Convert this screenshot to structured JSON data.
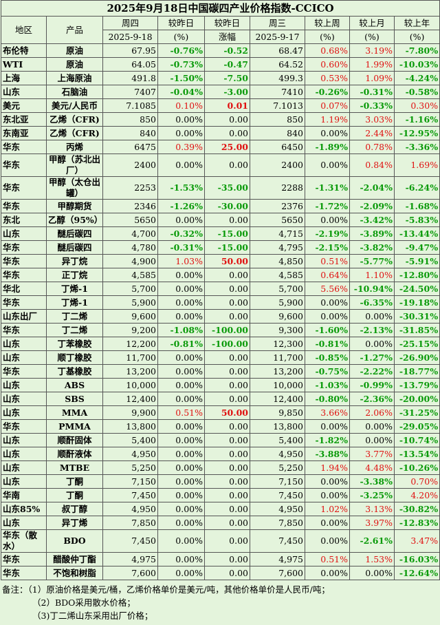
{
  "title": "2025年9月18日中国碳四产业价格指数-CCICO",
  "header": {
    "region": "地区",
    "product": "产品",
    "cols": [
      [
        "周四",
        "2025-9-18"
      ],
      [
        "较昨日",
        "(%)"
      ],
      [
        "较昨日",
        "涨幅"
      ],
      [
        "周三",
        "2025-9-17"
      ],
      [
        "较上周",
        "(%)"
      ],
      [
        "较上月",
        "(%)"
      ],
      [
        "较上年",
        "(%)"
      ]
    ]
  },
  "table": {
    "rows": [
      [
        "布伦特",
        "原油",
        "67.95",
        "-0.76%",
        "-0.52",
        "68.47",
        "0.68%",
        "3.19%",
        "-7.80%"
      ],
      [
        "WTI",
        "原油",
        "64.05",
        "-0.73%",
        "-0.47",
        "64.52",
        "0.60%",
        "1.99%",
        "-10.03%"
      ],
      [
        "上海",
        "上海原油",
        "491.8",
        "-1.50%",
        "-7.50",
        "499.3",
        "0.53%",
        "1.09%",
        "-4.24%"
      ],
      [
        "山东",
        "石脑油",
        "7407",
        "-0.04%",
        "-3.00",
        "7410",
        "-0.26%",
        "-0.31%",
        "-0.58%"
      ],
      [
        "美元",
        "美元/人民币",
        "7.1085",
        "0.10%",
        "0.01",
        "7.1013",
        "0.07%",
        "-0.33%",
        "0.30%"
      ],
      [
        "东北亚",
        "乙烯（CFR)",
        "850",
        "0.00%",
        "0.00",
        "850",
        "1.19%",
        "3.03%",
        "-1.16%"
      ],
      [
        "东南亚",
        "乙烯（CFR)",
        "840",
        "0.00%",
        "0.00",
        "840",
        "0.00%",
        "2.44%",
        "-12.95%"
      ],
      [
        "华东",
        "丙烯",
        "6475",
        "0.39%",
        "25.00",
        "6450",
        "-1.89%",
        "0.78%",
        "-3.36%"
      ],
      [
        "华东",
        "甲醇（苏北出厂）",
        "2400",
        "0.00%",
        "0.00",
        "2400",
        "0.00%",
        "0.84%",
        "1.69%"
      ],
      [
        "华东",
        "甲醇（太仓出罐）",
        "2253",
        "-1.53%",
        "-35.00",
        "2288",
        "-1.31%",
        "-2.04%",
        "-6.24%"
      ],
      [
        "华东",
        "甲醇期货",
        "2346",
        "-1.26%",
        "-30.00",
        "2376",
        "-1.72%",
        "-2.09%",
        "-1.68%"
      ],
      [
        "东北",
        "乙醇（95%）",
        "5650",
        "0.00%",
        "0.00",
        "5650",
        "0.00%",
        "-3.42%",
        "-5.83%"
      ],
      [
        "山东",
        "醚后碳四",
        "4,700",
        "-0.32%",
        "-15.00",
        "4,715",
        "-2.19%",
        "-3.89%",
        "-13.44%"
      ],
      [
        "华东",
        "醚后碳四",
        "4,780",
        "-0.31%",
        "-15.00",
        "4,795",
        "-2.15%",
        "-3.82%",
        "-9.47%"
      ],
      [
        "华东",
        "异丁烷",
        "4,900",
        "1.03%",
        "50.00",
        "4,850",
        "0.51%",
        "-5.77%",
        "-5.91%"
      ],
      [
        "华东",
        "正丁烷",
        "4,585",
        "0.00%",
        "0.00",
        "4,585",
        "0.64%",
        "1.10%",
        "-12.80%"
      ],
      [
        "华北",
        "丁烯-1",
        "5,700",
        "0.00%",
        "0.00",
        "5,700",
        "5.56%",
        "-10.94%",
        "-24.50%"
      ],
      [
        "华东",
        "丁烯-1",
        "5,900",
        "0.00%",
        "0.00",
        "5,900",
        "0.00%",
        "-6.35%",
        "-19.18%"
      ],
      [
        "山东出厂",
        "丁二烯",
        "9,600",
        "0.00%",
        "0.00",
        "9,600",
        "0.00%",
        "0.00%",
        "-30.31%"
      ],
      [
        "华东",
        "丁二烯",
        "9,200",
        "-1.08%",
        "-100.00",
        "9,300",
        "-1.60%",
        "-2.13%",
        "-31.85%"
      ],
      [
        "山东",
        "丁苯橡胶",
        "12,200",
        "-0.81%",
        "-100.00",
        "12,300",
        "-0.81%",
        "0.00%",
        "-25.15%"
      ],
      [
        "山东",
        "顺丁橡胶",
        "11,700",
        "0.00%",
        "0.00",
        "11,700",
        "-0.85%",
        "-1.27%",
        "-26.90%"
      ],
      [
        "华东",
        "丁基橡胶",
        "13,200",
        "0.00%",
        "0.00",
        "13,200",
        "-0.75%",
        "-2.22%",
        "-18.77%"
      ],
      [
        "山东",
        "ABS",
        "10,000",
        "0.00%",
        "0.00",
        "10,000",
        "-1.03%",
        "-0.99%",
        "-13.79%"
      ],
      [
        "山东",
        "SBS",
        "12,400",
        "0.00%",
        "0.00",
        "12,400",
        "-0.80%",
        "-2.36%",
        "-20.00%"
      ],
      [
        "山东",
        "MMA",
        "9,900",
        "0.51%",
        "50.00",
        "9,850",
        "3.66%",
        "2.06%",
        "-31.25%"
      ],
      [
        "华东",
        "PMMA",
        "13,800",
        "0.00%",
        "0.00",
        "13,800",
        "0.00%",
        "0.00%",
        "-29.05%"
      ],
      [
        "山东",
        "顺酐固体",
        "5,400",
        "0.00%",
        "0.00",
        "5,400",
        "-1.82%",
        "0.00%",
        "-10.74%"
      ],
      [
        "山东",
        "顺酐液体",
        "4,950",
        "0.00%",
        "0.00",
        "4,950",
        "-3.88%",
        "3.77%",
        "-13.54%"
      ],
      [
        "山东",
        "MTBE",
        "5,250",
        "0.00%",
        "0.00",
        "5,250",
        "1.94%",
        "4.48%",
        "-10.26%"
      ],
      [
        "山东",
        "丁酮",
        "7,150",
        "0.00%",
        "0.00",
        "7,150",
        "0.00%",
        "-3.38%",
        "0.70%"
      ],
      [
        "华南",
        "丁酮",
        "7,450",
        "0.00%",
        "0.00",
        "7,450",
        "0.00%",
        "-3.25%",
        "4.20%"
      ],
      [
        "山东85%",
        "叔丁醇",
        "4,950",
        "0.00%",
        "0.00",
        "4,950",
        "1.02%",
        "3.13%",
        "-30.82%"
      ],
      [
        "山东",
        "异丁烯",
        "7,850",
        "0.00%",
        "0.00",
        "7,850",
        "0.00%",
        "3.97%",
        "-12.83%"
      ],
      [
        "华东（散水）",
        "BDO",
        "7,450",
        "0.00%",
        "0.00",
        "7,450",
        "0.00%",
        "-2.61%",
        "3.47%"
      ],
      [
        "华东",
        "醋酸仲丁酯",
        "4,975",
        "0.00%",
        "0.00",
        "4,975",
        "0.51%",
        "1.53%",
        "-16.03%"
      ],
      [
        "华东",
        "不饱和树脂",
        "7,600",
        "0.00%",
        "0.00",
        "7,600",
        "0.00%",
        "0.00%",
        "-12.64%"
      ]
    ]
  },
  "notes": [
    "备注：（1）原油价格是美元/桶，乙烯价格单价是美元/吨，其他价格单价是人民币/吨；",
    "（2）BDO采用散水价格；",
    "（3)丁二烯山东采用出厂价格；"
  ]
}
